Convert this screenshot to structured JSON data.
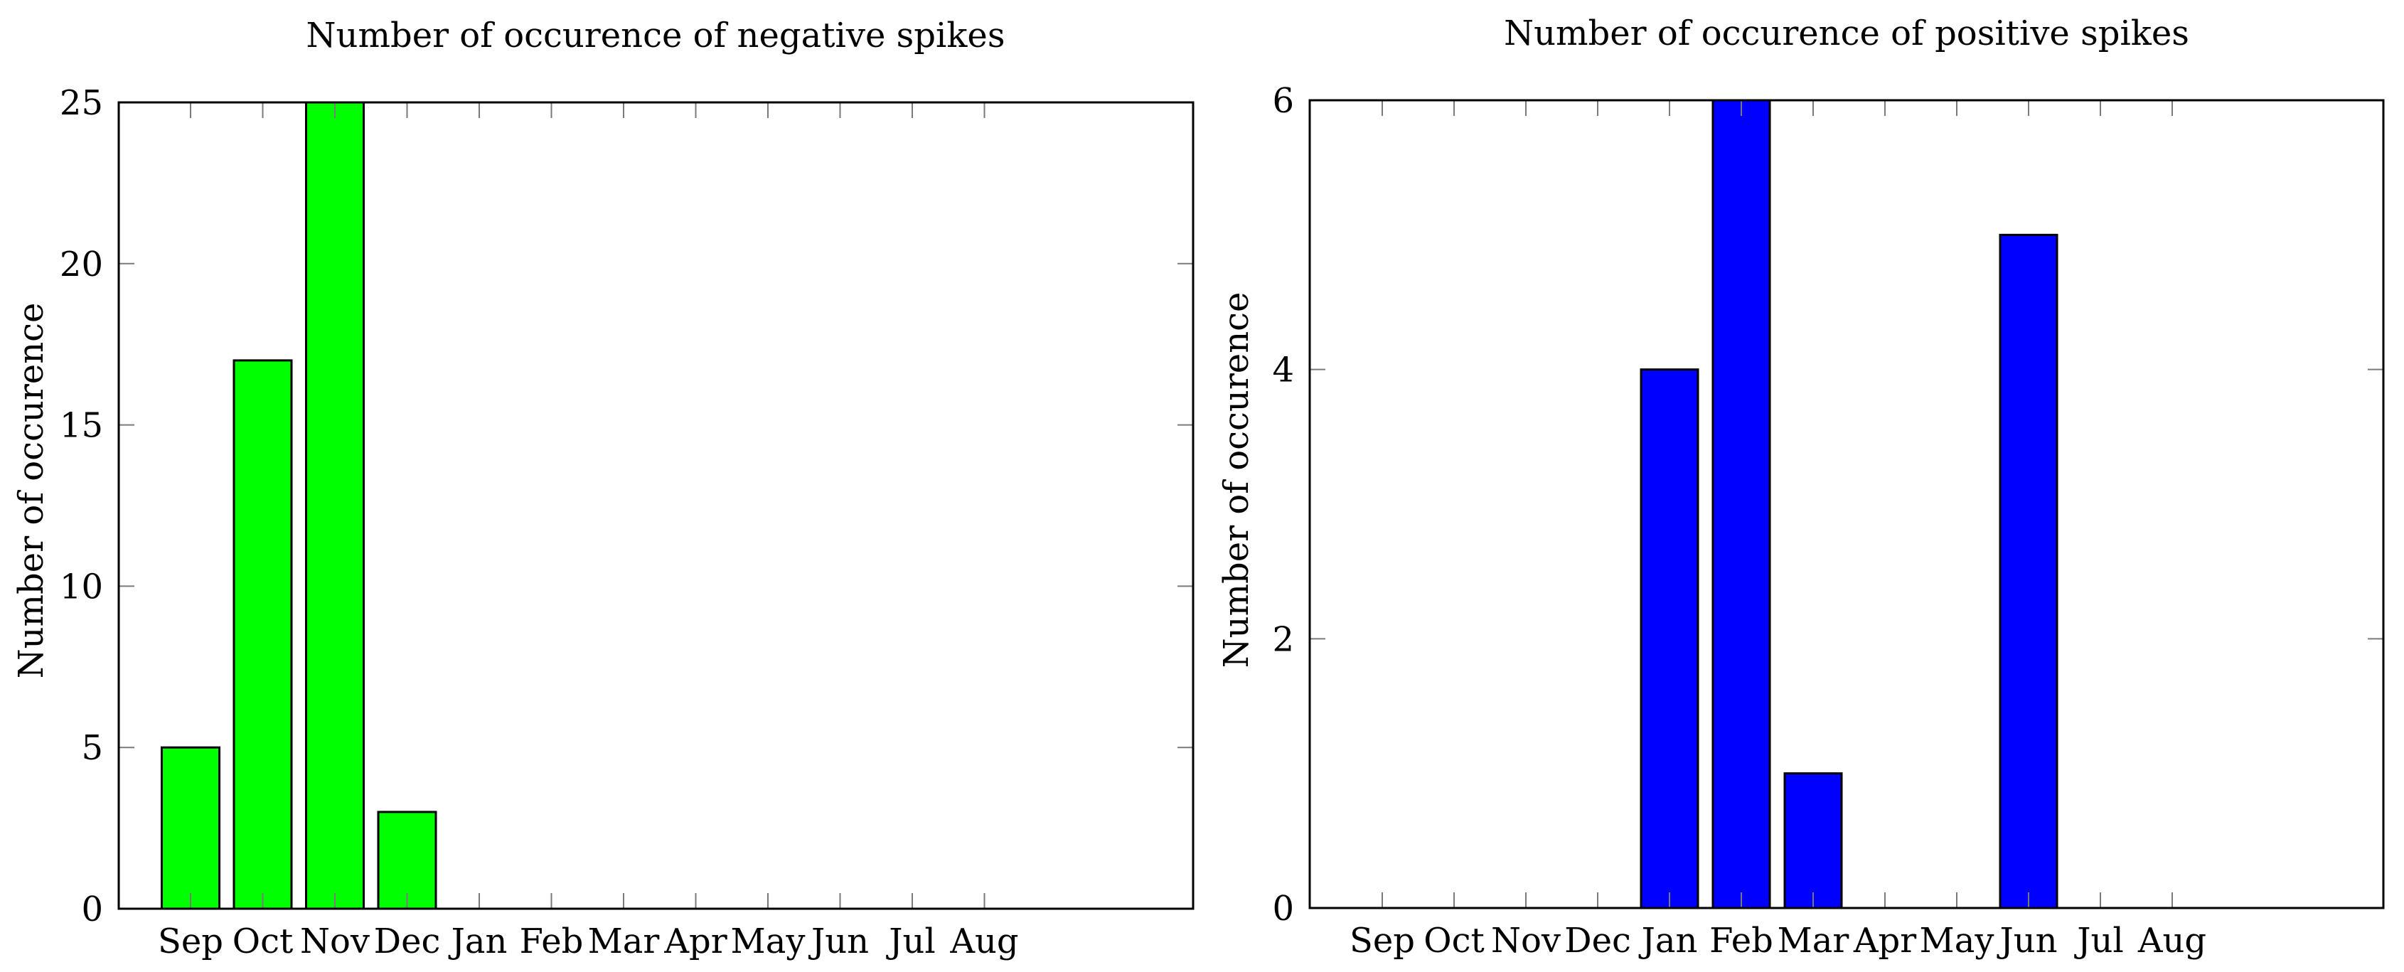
{
  "chart_data": [
    {
      "type": "bar",
      "title": "Number of occurence of negative spikes",
      "xlabel": "",
      "ylabel": "Number of occurence",
      "categories": [
        "Sep",
        "Oct",
        "Nov",
        "Dec",
        "Jan",
        "Feb",
        "Mar",
        "Apr",
        "May",
        "Jun",
        "Jul",
        "Aug"
      ],
      "values": [
        5,
        17,
        25,
        3,
        0,
        0,
        0,
        0,
        0,
        0,
        0,
        0
      ],
      "ylim": [
        0,
        25
      ],
      "yticks": [
        0,
        5,
        10,
        15,
        20,
        25
      ],
      "bar_color": "#00ff00",
      "grid": false
    },
    {
      "type": "bar",
      "title": "Number of occurence of positive spikes",
      "xlabel": "",
      "ylabel": "Number of occurence",
      "categories": [
        "Sep",
        "Oct",
        "Nov",
        "Dec",
        "Jan",
        "Feb",
        "Mar",
        "Apr",
        "May",
        "Jun",
        "Jul",
        "Aug"
      ],
      "values": [
        0,
        0,
        0,
        0,
        4,
        6,
        1,
        0,
        0,
        5,
        0,
        0
      ],
      "ylim": [
        0,
        6
      ],
      "yticks": [
        0,
        2,
        4,
        6
      ],
      "bar_color": "#0000ff",
      "grid": false
    }
  ]
}
